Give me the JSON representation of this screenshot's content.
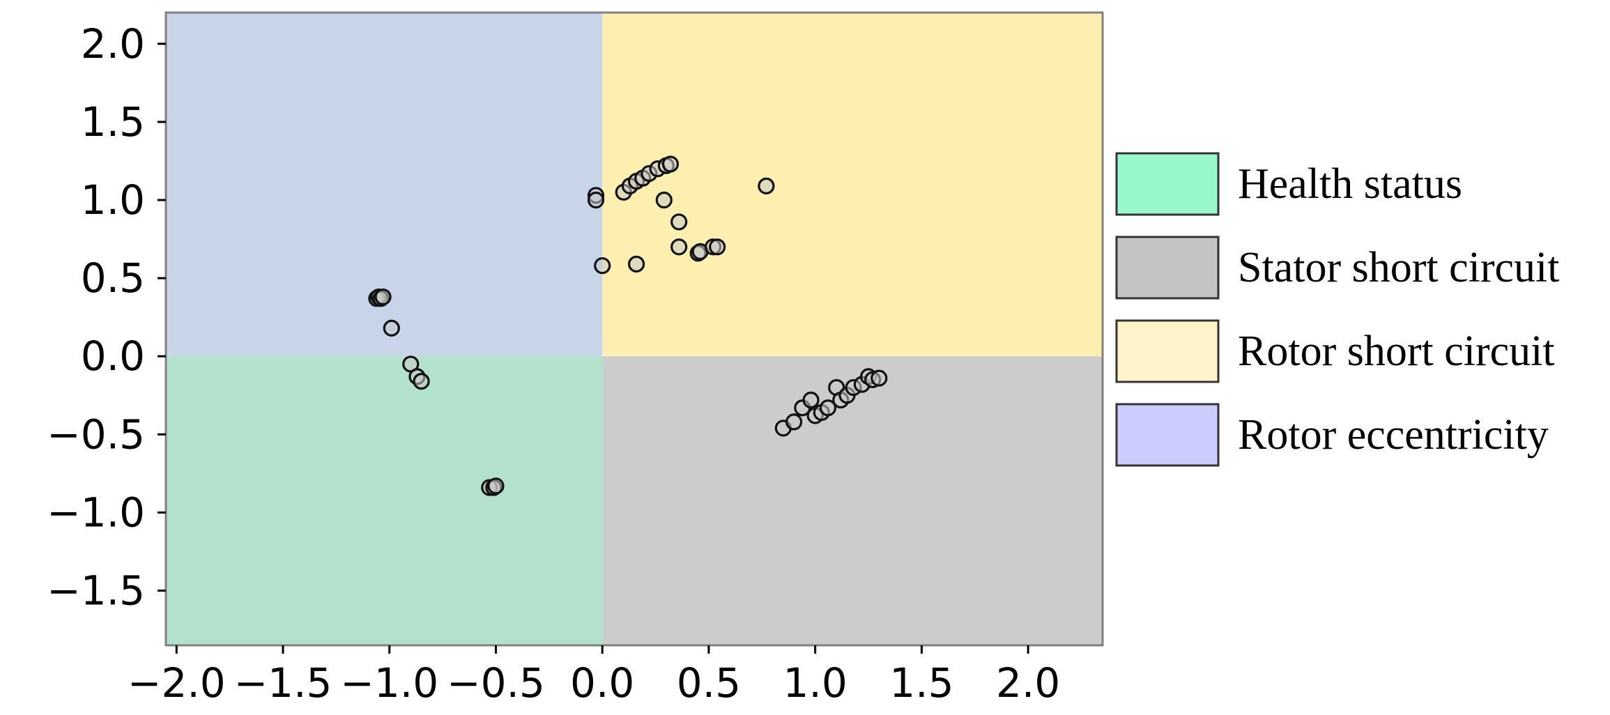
{
  "chart_data": {
    "type": "scatter",
    "title": "",
    "xlabel": "",
    "ylabel": "",
    "xlim": [
      -2.05,
      2.35
    ],
    "ylim": [
      -1.85,
      2.2
    ],
    "x_ticks": [
      "−2.0",
      "−1.5",
      "−1.0",
      "−0.5",
      "0.0",
      "0.5",
      "1.0",
      "1.5",
      "2.0"
    ],
    "x_tick_values": [
      -2.0,
      -1.5,
      -1.0,
      -0.5,
      0.0,
      0.5,
      1.0,
      1.5,
      2.0
    ],
    "y_ticks": [
      "2.0",
      "1.5",
      "1.0",
      "0.5",
      "0.0",
      "−0.5",
      "−1.0",
      "−1.5"
    ],
    "y_tick_values": [
      2.0,
      1.5,
      1.0,
      0.5,
      0.0,
      -0.5,
      -1.0,
      -1.5
    ],
    "grid": false,
    "regions": [
      {
        "label": "Rotor eccentricity",
        "x_range": [
          -2.05,
          0.0
        ],
        "y_range": [
          0.0,
          2.2
        ],
        "color": "#c8d4e8"
      },
      {
        "label": "Rotor short circuit",
        "x_range": [
          0.0,
          2.35
        ],
        "y_range": [
          0.0,
          2.2
        ],
        "color": "#fdefb0"
      },
      {
        "label": "Health status",
        "x_range": [
          -2.05,
          0.0
        ],
        "y_range": [
          -1.85,
          0.0
        ],
        "color": "#b2e2cc"
      },
      {
        "label": "Stator short circuit",
        "x_range": [
          0.0,
          2.35
        ],
        "y_range": [
          -1.85,
          0.0
        ],
        "color": "#cccccc"
      }
    ],
    "legend_position": "right",
    "legend": [
      {
        "label": "Health status",
        "color": "#99f7cc"
      },
      {
        "label": "Stator short circuit",
        "color": "#c4c4c4"
      },
      {
        "label": "Rotor short circuit",
        "color": "#fff3cc"
      },
      {
        "label": "Rotor eccentricity",
        "color": "#ccccff"
      }
    ],
    "points": [
      {
        "x": -1.06,
        "y": 0.37
      },
      {
        "x": -1.05,
        "y": 0.38
      },
      {
        "x": -1.04,
        "y": 0.37
      },
      {
        "x": -1.03,
        "y": 0.38
      },
      {
        "x": -0.99,
        "y": 0.18
      },
      {
        "x": -0.9,
        "y": -0.05
      },
      {
        "x": -0.87,
        "y": -0.13
      },
      {
        "x": -0.85,
        "y": -0.16
      },
      {
        "x": -0.53,
        "y": -0.84
      },
      {
        "x": -0.51,
        "y": -0.84
      },
      {
        "x": -0.5,
        "y": -0.83
      },
      {
        "x": -0.03,
        "y": 1.03
      },
      {
        "x": -0.03,
        "y": 1.0
      },
      {
        "x": 0.0,
        "y": 0.58
      },
      {
        "x": 0.16,
        "y": 0.59
      },
      {
        "x": 0.1,
        "y": 1.05
      },
      {
        "x": 0.13,
        "y": 1.09
      },
      {
        "x": 0.16,
        "y": 1.12
      },
      {
        "x": 0.19,
        "y": 1.14
      },
      {
        "x": 0.22,
        "y": 1.17
      },
      {
        "x": 0.26,
        "y": 1.2
      },
      {
        "x": 0.3,
        "y": 1.22
      },
      {
        "x": 0.32,
        "y": 1.23
      },
      {
        "x": 0.29,
        "y": 1.0
      },
      {
        "x": 0.36,
        "y": 0.86
      },
      {
        "x": 0.36,
        "y": 0.7
      },
      {
        "x": 0.45,
        "y": 0.66
      },
      {
        "x": 0.46,
        "y": 0.67
      },
      {
        "x": 0.52,
        "y": 0.7
      },
      {
        "x": 0.54,
        "y": 0.7
      },
      {
        "x": 0.77,
        "y": 1.09
      },
      {
        "x": 0.85,
        "y": -0.46
      },
      {
        "x": 0.9,
        "y": -0.42
      },
      {
        "x": 0.94,
        "y": -0.33
      },
      {
        "x": 0.98,
        "y": -0.28
      },
      {
        "x": 1.0,
        "y": -0.38
      },
      {
        "x": 1.03,
        "y": -0.36
      },
      {
        "x": 1.06,
        "y": -0.33
      },
      {
        "x": 1.1,
        "y": -0.2
      },
      {
        "x": 1.12,
        "y": -0.28
      },
      {
        "x": 1.15,
        "y": -0.25
      },
      {
        "x": 1.18,
        "y": -0.2
      },
      {
        "x": 1.22,
        "y": -0.18
      },
      {
        "x": 1.25,
        "y": -0.13
      },
      {
        "x": 1.27,
        "y": -0.15
      },
      {
        "x": 1.3,
        "y": -0.14
      }
    ]
  }
}
